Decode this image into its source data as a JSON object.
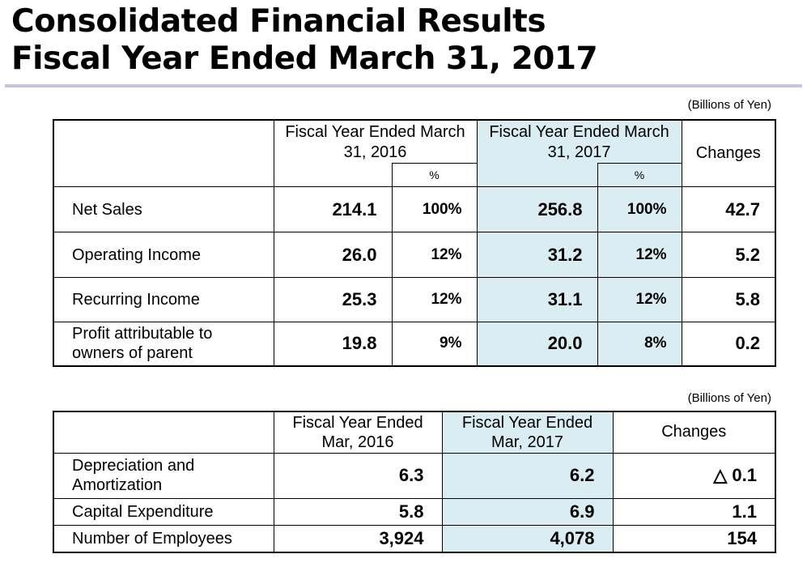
{
  "title": {
    "line1": "Consolidated Financial Results",
    "line2": "Fiscal Year Ended March 31, 2017"
  },
  "table1": {
    "unit": "(Billions of Yen)",
    "headers": {
      "fy2016": "Fiscal Year Ended March 31, 2016",
      "fy2017": "Fiscal Year Ended March 31, 2017",
      "pct": "%",
      "changes": "Changes"
    },
    "rows": [
      {
        "label": "Net Sales",
        "v2016": "214.1",
        "p2016": "100%",
        "v2017": "256.8",
        "p2017": "100%",
        "change": "42.7"
      },
      {
        "label": "Operating Income",
        "v2016": "26.0",
        "p2016": "12%",
        "v2017": "31.2",
        "p2017": "12%",
        "change": "5.2"
      },
      {
        "label": "Recurring Income",
        "v2016": "25.3",
        "p2016": "12%",
        "v2017": "31.1",
        "p2017": "12%",
        "change": "5.8"
      },
      {
        "label": "Profit attributable to owners of parent",
        "v2016": "19.8",
        "p2016": "9%",
        "v2017": "20.0",
        "p2017": "8%",
        "change": "0.2"
      }
    ]
  },
  "table2": {
    "unit": "(Billions of Yen)",
    "headers": {
      "fy2016": "Fiscal Year Ended Mar, 2016",
      "fy2017": "Fiscal Year Ended Mar, 2017",
      "changes": "Changes"
    },
    "rows": [
      {
        "label": "Depreciation and Amortization",
        "v2016": "6.3",
        "v2017": "6.2",
        "change": "△ 0.1"
      },
      {
        "label": "Capital Expenditure",
        "v2016": "5.8",
        "v2017": "6.9",
        "change": "1.1"
      },
      {
        "label": "Number of Employees",
        "v2016": "3,924",
        "v2017": "4,078",
        "change": "154"
      }
    ]
  }
}
